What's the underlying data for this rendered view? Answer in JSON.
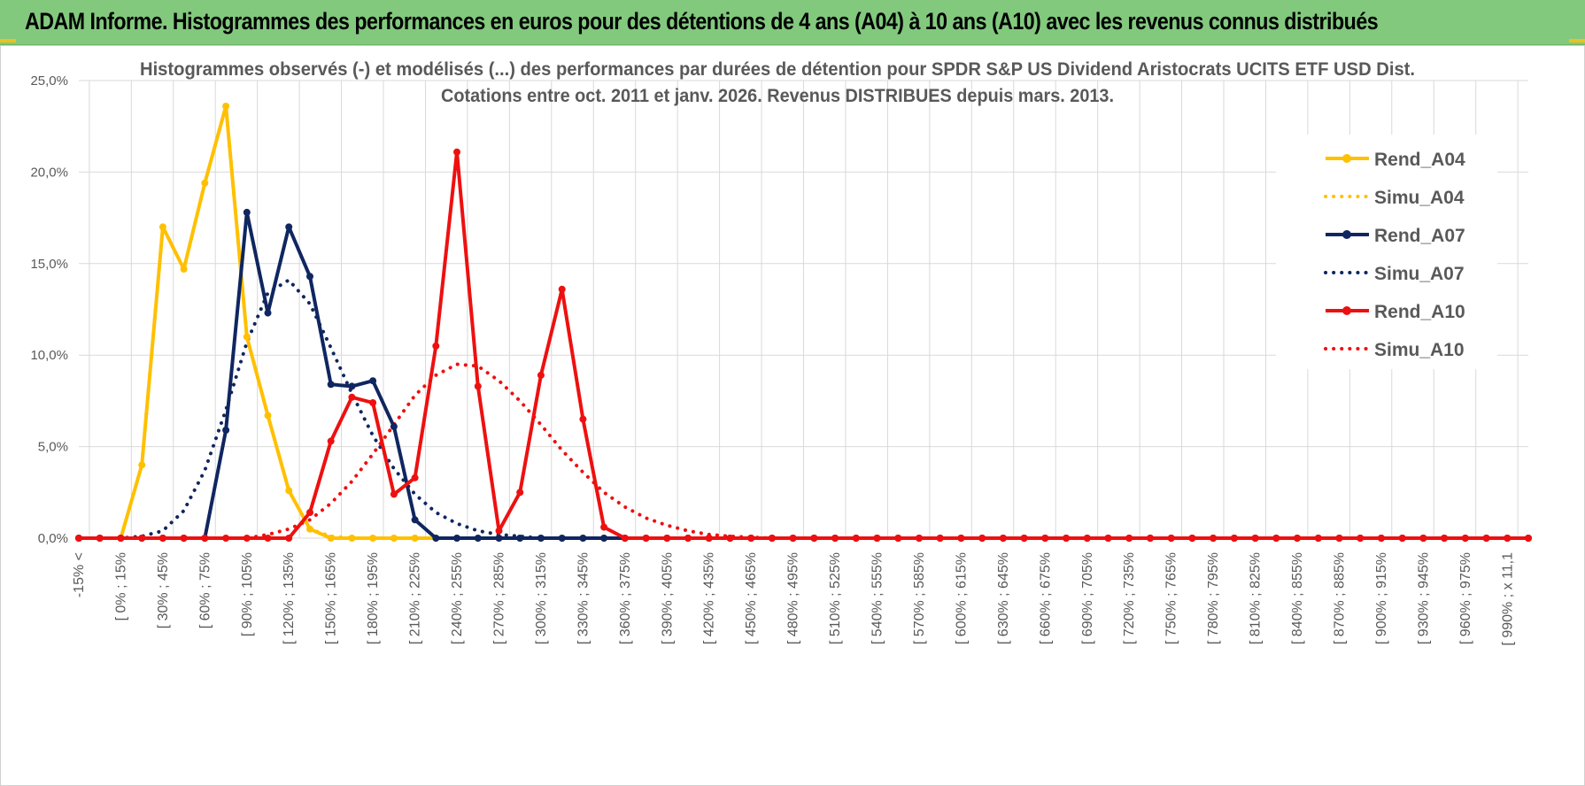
{
  "banner": {
    "title": "ADAM Informe. Histogrammes des performances en euros pour des détentions de 4 ans (A04) à 10 ans (A10) avec les revenus connus distribués"
  },
  "chart_data": {
    "type": "line",
    "title": "Histogrammes observés (-) et modélisés (...) des performances par durées de détention pour SPDR S&P US Dividend Aristocrats UCITS ETF USD Dist.",
    "subtitle": "Cotations entre oct. 2011 et janv. 2026. Revenus DISTRIBUES depuis mars. 2013.",
    "xlabel": "",
    "ylabel": "",
    "ylim": [
      0,
      25
    ],
    "y_ticks": [
      "0,0%",
      "5,0%",
      "10,0%",
      "15,0%",
      "20,0%",
      "25,0%"
    ],
    "y_tick_values": [
      0,
      5,
      10,
      15,
      20,
      25
    ],
    "grid": true,
    "legend_position": "right",
    "x_tick_labels": [
      "-15% <",
      "[ 0% ; 15%",
      "[ 30% ; 45%",
      "[ 60% ; 75%",
      "[ 90% ; 105%",
      "[ 120% ; 135%",
      "[ 150% ; 165%",
      "[ 180% ; 195%",
      "[ 210% ; 225%",
      "[ 240% ; 255%",
      "[ 270% ; 285%",
      "[ 300% ; 315%",
      "[ 330% ; 345%",
      "[ 360% ; 375%",
      "[ 390% ; 405%",
      "[ 420% ; 435%",
      "[ 450% ; 465%",
      "[ 480% ; 495%",
      "[ 510% ; 525%",
      "[ 540% ; 555%",
      "[ 570% ; 585%",
      "[ 600% ; 615%",
      "[ 630% ; 645%",
      "[ 660% ; 675%",
      "[ 690% ; 705%",
      "[ 720% ; 735%",
      "[ 750% ; 765%",
      "[ 780% ; 795%",
      "[ 810% ; 825%",
      "[ 840% ; 855%",
      "[ 870% ; 885%",
      "[ 900% ; 915%",
      "[ 930% ; 945%",
      "[ 960% ; 975%",
      "[ 990% ; x 11,1"
    ],
    "series": [
      {
        "name": "Rend_A04",
        "color": "#ffc000",
        "style": "solid",
        "markers": true,
        "values": [
          0,
          0,
          0,
          4.0,
          17.0,
          14.7,
          19.4,
          23.6,
          11.0,
          6.7,
          2.6,
          0.5,
          0,
          0,
          0,
          0,
          0,
          0,
          0,
          0,
          0,
          0,
          0,
          0,
          0,
          0,
          0,
          0,
          0,
          0,
          0,
          0,
          0,
          0,
          0,
          0,
          0,
          0,
          0,
          0,
          0,
          0,
          0,
          0,
          0,
          0,
          0,
          0,
          0,
          0,
          0,
          0,
          0,
          0,
          0,
          0,
          0,
          0,
          0,
          0,
          0,
          0,
          0,
          0,
          0,
          0,
          0,
          0,
          0,
          0
        ]
      },
      {
        "name": "Simu_A04",
        "color": "#ffc000",
        "style": "dotted",
        "markers": false,
        "values": [
          0,
          0,
          0,
          4.0,
          17.0,
          14.7,
          19.4,
          23.6,
          11.0,
          6.7,
          2.6,
          0.5,
          0.1,
          0,
          0,
          0,
          0,
          0,
          0,
          0,
          0,
          0,
          0,
          0,
          0,
          0,
          0,
          0,
          0,
          0,
          0,
          0,
          0,
          0,
          0,
          0,
          0,
          0,
          0,
          0,
          0,
          0,
          0,
          0,
          0,
          0,
          0,
          0,
          0,
          0,
          0,
          0,
          0,
          0,
          0,
          0,
          0,
          0,
          0,
          0,
          0,
          0,
          0,
          0,
          0,
          0,
          0,
          0,
          0,
          0
        ]
      },
      {
        "name": "Rend_A07",
        "color": "#0f2660",
        "style": "solid",
        "markers": true,
        "values": [
          0,
          0,
          0,
          0,
          0,
          0,
          0,
          5.9,
          17.8,
          12.3,
          17.0,
          14.3,
          8.4,
          8.3,
          8.6,
          6.1,
          1.0,
          0,
          0,
          0,
          0,
          0,
          0,
          0,
          0,
          0,
          0,
          0,
          0,
          0,
          0,
          0,
          0,
          0,
          0,
          0,
          0,
          0,
          0,
          0,
          0,
          0,
          0,
          0,
          0,
          0,
          0,
          0,
          0,
          0,
          0,
          0,
          0,
          0,
          0,
          0,
          0,
          0,
          0,
          0,
          0,
          0,
          0,
          0,
          0,
          0,
          0,
          0,
          0,
          0
        ]
      },
      {
        "name": "Simu_A07",
        "color": "#0f2660",
        "style": "dotted",
        "markers": false,
        "values": [
          0,
          0,
          0,
          0.1,
          0.4,
          1.5,
          3.7,
          7.0,
          10.7,
          13.4,
          14.1,
          12.8,
          10.4,
          7.9,
          5.6,
          3.8,
          2.4,
          1.4,
          0.8,
          0.4,
          0.2,
          0.1,
          0,
          0,
          0,
          0,
          0,
          0,
          0,
          0,
          0,
          0,
          0,
          0,
          0,
          0,
          0,
          0,
          0,
          0,
          0,
          0,
          0,
          0,
          0,
          0,
          0,
          0,
          0,
          0,
          0,
          0,
          0,
          0,
          0,
          0,
          0,
          0,
          0,
          0,
          0,
          0,
          0,
          0,
          0,
          0,
          0,
          0,
          0,
          0
        ]
      },
      {
        "name": "Rend_A10",
        "color": "#ee1010",
        "style": "solid",
        "markers": true,
        "values": [
          0,
          0,
          0,
          0,
          0,
          0,
          0,
          0,
          0,
          0,
          0,
          1.4,
          5.3,
          7.7,
          7.4,
          2.4,
          3.3,
          10.5,
          21.1,
          8.3,
          0.4,
          2.5,
          8.9,
          13.6,
          6.5,
          0.6,
          0,
          0,
          0,
          0,
          0,
          0,
          0,
          0,
          0,
          0,
          0,
          0,
          0,
          0,
          0,
          0,
          0,
          0,
          0,
          0,
          0,
          0,
          0,
          0,
          0,
          0,
          0,
          0,
          0,
          0,
          0,
          0,
          0,
          0,
          0,
          0,
          0,
          0,
          0,
          0,
          0,
          0,
          0,
          0
        ]
      },
      {
        "name": "Simu_A10",
        "color": "#ee1010",
        "style": "dotted",
        "markers": false,
        "values": [
          0,
          0,
          0,
          0,
          0,
          0,
          0,
          0,
          0,
          0.2,
          0.5,
          1.0,
          1.9,
          3.1,
          4.6,
          6.2,
          7.8,
          8.9,
          9.5,
          9.4,
          8.6,
          7.5,
          6.2,
          4.8,
          3.6,
          2.5,
          1.7,
          1.1,
          0.7,
          0.4,
          0.2,
          0.1,
          0.05,
          0,
          0,
          0,
          0,
          0,
          0,
          0,
          0,
          0,
          0,
          0,
          0,
          0,
          0,
          0,
          0,
          0,
          0,
          0,
          0,
          0,
          0,
          0,
          0,
          0,
          0,
          0,
          0,
          0,
          0,
          0,
          0,
          0,
          0,
          0,
          0,
          0
        ]
      }
    ]
  }
}
